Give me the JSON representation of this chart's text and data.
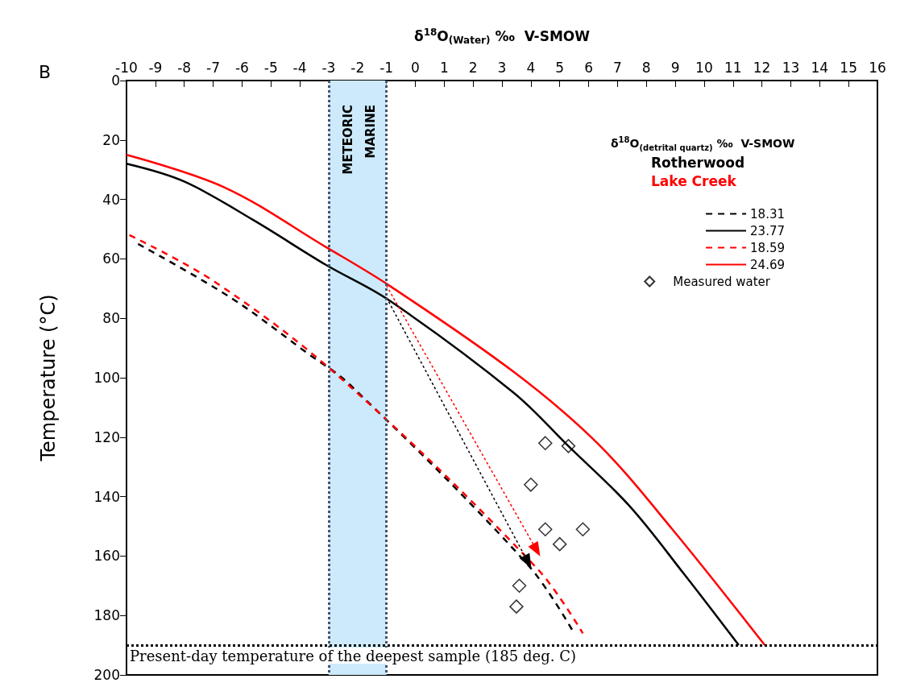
{
  "chart_data": {
    "type": "line",
    "xlabel": "δ$^{18}$O$_{(Water)}$ ‰  V-SMOW",
    "ylabel": "Temperature (°C)",
    "legend_title": "δ$^{18}$O$_{(detrital quartz)}$ ‰  V-SMOW",
    "xlim": [
      -10,
      16
    ],
    "xticks": [
      -10,
      -9,
      -8,
      -7,
      -6,
      -5,
      -4,
      -3,
      -2,
      -1,
      0,
      1,
      2,
      3,
      4,
      5,
      6,
      7,
      8,
      9,
      10,
      11,
      12,
      13,
      14,
      15,
      16
    ],
    "ylim": [
      200,
      0
    ],
    "yticks": [
      0,
      20,
      40,
      60,
      80,
      100,
      120,
      140,
      160,
      180,
      200
    ],
    "grid": false,
    "legend": "top right",
    "series": [
      {
        "name": "18.31",
        "color": "#000000",
        "line_style": "dashed",
        "marker": "none",
        "x": [
          -9.6,
          -6.4,
          -3.7,
          -2.3,
          3.9,
          5.5
        ],
        "values": [
          55,
          73,
          92,
          102,
          163,
          186
        ]
      },
      {
        "name": "23.77",
        "color": "#000000",
        "line_style": "solid",
        "marker": "none",
        "x": [
          -10,
          -8,
          -5.6,
          -3.1,
          -0.9,
          3.4,
          5.3,
          7.4,
          9.3,
          11.2
        ],
        "values": [
          28,
          34,
          47,
          62,
          74,
          105,
          123,
          143,
          166,
          190
        ]
      },
      {
        "name": "18.59",
        "color": "#ff0000",
        "line_style": "dashed",
        "marker": "none",
        "x": [
          -9.9,
          -6.9,
          -2.6,
          4.2,
          5.8
        ],
        "values": [
          52,
          68,
          100,
          164,
          186
        ]
      },
      {
        "name": "24.69",
        "color": "#ff0000",
        "line_style": "solid",
        "marker": "none",
        "x": [
          -10,
          -6.6,
          -3.1,
          -0.9,
          3.4,
          6.3,
          8.9,
          12.1
        ],
        "values": [
          25,
          36,
          56,
          69,
          98,
          122,
          151,
          190
        ]
      },
      {
        "name": "Measured water",
        "type": "scatter",
        "color": "#000000",
        "marker": "diamond",
        "x": [
          4.5,
          5.3,
          4,
          4.5,
          5.8,
          5,
          3.6,
          3.5
        ],
        "values": [
          122,
          123,
          136,
          151,
          151,
          156,
          170,
          177
        ]
      },
      {
        "color": "#000000",
        "line_style": "dotted",
        "marker": "triangle",
        "x": [
          -1,
          3.9
        ],
        "values": [
          73,
          162
        ]
      },
      {
        "color": "#ff0000",
        "line_style": "dotted",
        "marker": "triangle",
        "x": [
          -1,
          4.2
        ],
        "values": [
          69,
          158
        ]
      }
    ],
    "bands": [
      {
        "axis": "x",
        "from": -3,
        "to": -1,
        "color": "#cceafb"
      }
    ],
    "ref_lines": [
      {
        "axis": "x",
        "value": -3,
        "color": "#44546a",
        "line_style": "dotted"
      },
      {
        "axis": "x",
        "value": -1,
        "color": "#44546a",
        "line_style": "dotted"
      },
      {
        "axis": "y",
        "value": 190,
        "color": "#000000",
        "line_style": "dotted",
        "label": "Present-day temperature of the deepest sample (185 deg. C)"
      }
    ],
    "annotations": [
      "METEORIC",
      "MARINE",
      "B",
      "Rotherwood",
      "Lake Creek"
    ]
  }
}
